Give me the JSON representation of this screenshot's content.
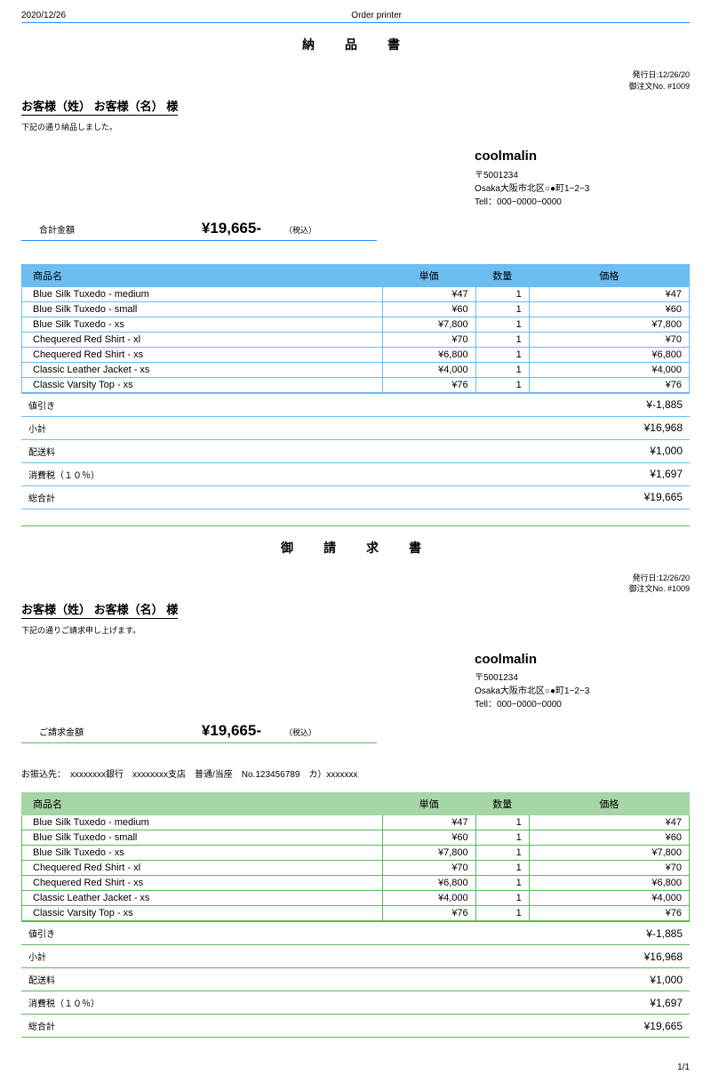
{
  "header": {
    "date": "2020/12/26",
    "app": "Order printer"
  },
  "colors": {
    "blue": "#1e90ff",
    "blue_header": "#6bbdf2",
    "green": "#5cb85c",
    "green_header": "#a6d5a6"
  },
  "delivery": {
    "title": "納　品　書",
    "issued_label": "発行日:",
    "issued": "12/26/20",
    "order_label": "御注文No. ",
    "order_no": "#1009",
    "customer": "お客様（姓） お客様（名） 様",
    "note": "下記の通り納品しました。",
    "company": {
      "name": "coolmalin",
      "postal": "〒5001234",
      "address": "Osaka大阪市北区○●町1−2−3",
      "tel": "Tell：000−0000−0000"
    },
    "total_label": "合計金額",
    "grand_total": "¥19,665-",
    "tax_note": "（税込）"
  },
  "invoice": {
    "title": "御　請　求　書",
    "issued_label": "発行日:",
    "issued": "12/26/20",
    "order_label": "御注文No. ",
    "order_no": "#1009",
    "customer": "お客様（姓） お客様（名） 様",
    "note": "下記の通りご請求申し上げます。",
    "company": {
      "name": "coolmalin",
      "postal": "〒5001234",
      "address": "Osaka大阪市北区○●町1−2−3",
      "tel": "Tell：000−0000−0000"
    },
    "total_label": "ご請求金額",
    "grand_total": "¥19,665-",
    "tax_note": "（税込）",
    "bank": "お振込先：　xxxxxxxx銀行　xxxxxxxx支店　普通/当座　No.123456789　カ）xxxxxxx"
  },
  "table": {
    "headers": {
      "name": "商品名",
      "unit": "単価",
      "qty": "数量",
      "price": "価格"
    },
    "rows": [
      {
        "name": "Blue Silk Tuxedo - medium",
        "unit": "¥47",
        "qty": "1",
        "price": "¥47"
      },
      {
        "name": "Blue Silk Tuxedo - small",
        "unit": "¥60",
        "qty": "1",
        "price": "¥60"
      },
      {
        "name": "Blue Silk Tuxedo - xs",
        "unit": "¥7,800",
        "qty": "1",
        "price": "¥7,800"
      },
      {
        "name": "Chequered Red Shirt - xl",
        "unit": "¥70",
        "qty": "1",
        "price": "¥70"
      },
      {
        "name": "Chequered Red Shirt - xs",
        "unit": "¥6,800",
        "qty": "1",
        "price": "¥6,800"
      },
      {
        "name": "Classic Leather Jacket - xs",
        "unit": "¥4,000",
        "qty": "1",
        "price": "¥4,000"
      },
      {
        "name": "Classic Varsity Top - xs",
        "unit": "¥76",
        "qty": "1",
        "price": "¥76"
      }
    ],
    "summary": [
      {
        "label": "値引き",
        "value": "¥-1,885"
      },
      {
        "label": "小計",
        "value": "¥16,968"
      },
      {
        "label": "配送料",
        "value": "¥1,000"
      },
      {
        "label": "消費税（１０％）",
        "value": "¥1,697"
      },
      {
        "label": "総合計",
        "value": "¥19,665"
      }
    ]
  },
  "pagination": "1/1"
}
